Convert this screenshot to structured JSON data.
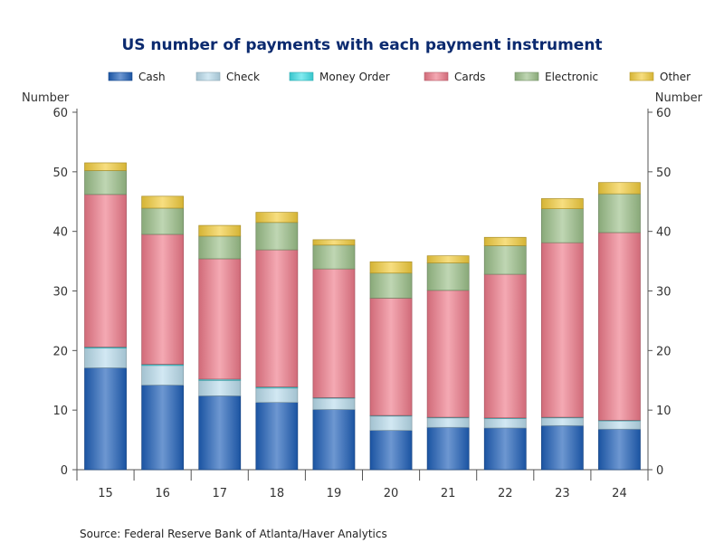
{
  "chart_data": {
    "type": "bar",
    "stacked": true,
    "title": "US number of payments with each payment instrument",
    "ylabel_left": "Number",
    "ylabel_right": "Number",
    "source": "Source:  Federal Reserve Bank of Atlanta/Haver Analytics",
    "ylim": [
      0,
      60
    ],
    "yticks": [
      0,
      10,
      20,
      30,
      40,
      50,
      60
    ],
    "categories": [
      "15",
      "16",
      "17",
      "18",
      "19",
      "20",
      "21",
      "22",
      "23",
      "24"
    ],
    "legend_position": "top",
    "series": [
      {
        "name": "Cash",
        "color": "#1f5fb8",
        "values": [
          17.1,
          14.2,
          12.4,
          11.3,
          10.1,
          6.6,
          7.1,
          7.0,
          7.4,
          6.8
        ]
      },
      {
        "name": "Check",
        "color": "#b9dcec",
        "values": [
          3.3,
          3.3,
          2.6,
          2.4,
          1.9,
          2.4,
          1.6,
          1.6,
          1.3,
          1.4
        ]
      },
      {
        "name": "Money Order",
        "color": "#3ee0e8",
        "values": [
          0.2,
          0.2,
          0.2,
          0.2,
          0.1,
          0.1,
          0.1,
          0.1,
          0.1,
          0.1
        ]
      },
      {
        "name": "Cards",
        "color": "#ee7a8a",
        "values": [
          25.6,
          21.8,
          20.2,
          23.0,
          21.6,
          19.7,
          21.3,
          24.1,
          29.3,
          31.5
        ]
      },
      {
        "name": "Electronic",
        "color": "#9cc08a",
        "values": [
          4.0,
          4.4,
          3.8,
          4.6,
          4.0,
          4.2,
          4.6,
          4.8,
          5.7,
          6.5
        ]
      },
      {
        "name": "Other",
        "color": "#f2cc3c",
        "values": [
          1.3,
          2.0,
          1.8,
          1.7,
          0.9,
          1.9,
          1.2,
          1.4,
          1.7,
          1.9
        ]
      }
    ]
  }
}
